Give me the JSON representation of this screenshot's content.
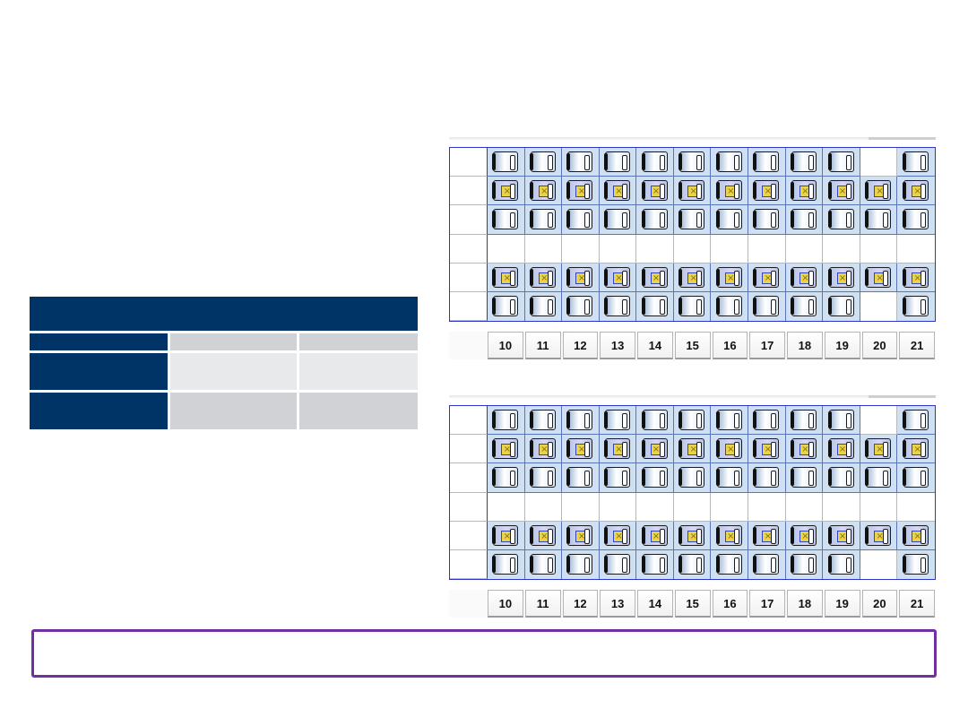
{
  "summary_table": {
    "header": "",
    "rows": [
      {
        "c1": "",
        "c2": "",
        "c3": ""
      },
      {
        "c1": "",
        "c2": "",
        "c3": ""
      },
      {
        "c1": "",
        "c2": "",
        "c3": ""
      }
    ]
  },
  "seat_maps": [
    {
      "name": "seat-map-1",
      "columns": [
        "10",
        "11",
        "12",
        "13",
        "14",
        "15",
        "16",
        "17",
        "18",
        "19",
        "20",
        "21"
      ],
      "rows": [
        [
          "seat",
          "seat",
          "seat",
          "seat",
          "seat",
          "seat",
          "seat",
          "seat",
          "seat",
          "seat",
          "empty",
          "seat"
        ],
        [
          "exit",
          "exit",
          "exit",
          "exit",
          "exit",
          "exit",
          "exit",
          "exit",
          "exit",
          "exit",
          "exit",
          "exit"
        ],
        [
          "seat",
          "seat",
          "seat",
          "seat",
          "seat",
          "seat",
          "seat",
          "seat",
          "seat",
          "seat",
          "seat",
          "seat"
        ],
        [
          "empty",
          "empty",
          "empty",
          "empty",
          "empty",
          "empty",
          "empty",
          "empty",
          "empty",
          "empty",
          "empty",
          "empty"
        ],
        [
          "exit",
          "exit",
          "exit",
          "exit",
          "exit",
          "exit",
          "exit",
          "exit",
          "exit",
          "exit",
          "exit",
          "exit"
        ],
        [
          "seat",
          "seat",
          "seat",
          "seat",
          "seat",
          "seat",
          "seat",
          "seat",
          "seat",
          "seat",
          "empty",
          "seat"
        ]
      ]
    },
    {
      "name": "seat-map-2",
      "columns": [
        "10",
        "11",
        "12",
        "13",
        "14",
        "15",
        "16",
        "17",
        "18",
        "19",
        "20",
        "21"
      ],
      "rows": [
        [
          "seat",
          "seat",
          "seat",
          "seat",
          "seat",
          "seat",
          "seat",
          "seat",
          "seat",
          "seat",
          "empty",
          "seat"
        ],
        [
          "exit",
          "exit",
          "exit",
          "exit",
          "exit",
          "exit",
          "exit",
          "exit",
          "exit",
          "exit",
          "exit",
          "exit"
        ],
        [
          "seat",
          "seat",
          "seat",
          "seat",
          "seat",
          "seat",
          "seat",
          "seat",
          "seat",
          "seat",
          "seat",
          "seat"
        ],
        [
          "empty",
          "empty",
          "empty",
          "empty",
          "empty",
          "empty",
          "empty",
          "empty",
          "empty",
          "empty",
          "empty",
          "empty"
        ],
        [
          "exit",
          "exit",
          "exit",
          "exit",
          "exit",
          "exit",
          "exit",
          "exit",
          "exit",
          "exit",
          "exit",
          "exit"
        ],
        [
          "seat",
          "seat",
          "seat",
          "seat",
          "seat",
          "seat",
          "seat",
          "seat",
          "seat",
          "seat",
          "empty",
          "seat"
        ]
      ]
    }
  ],
  "icons": {
    "seat": "seat-icon",
    "exit_seat": "exit-row-seat-icon",
    "exit_mark": "×"
  },
  "colors": {
    "navy": "#003366",
    "grid_border": "#2b35c8",
    "seat_cell": "#cfe0f3",
    "exit_mark": "#e9d24e",
    "footer_border": "#7030a0"
  },
  "footer": {
    "text": ""
  }
}
